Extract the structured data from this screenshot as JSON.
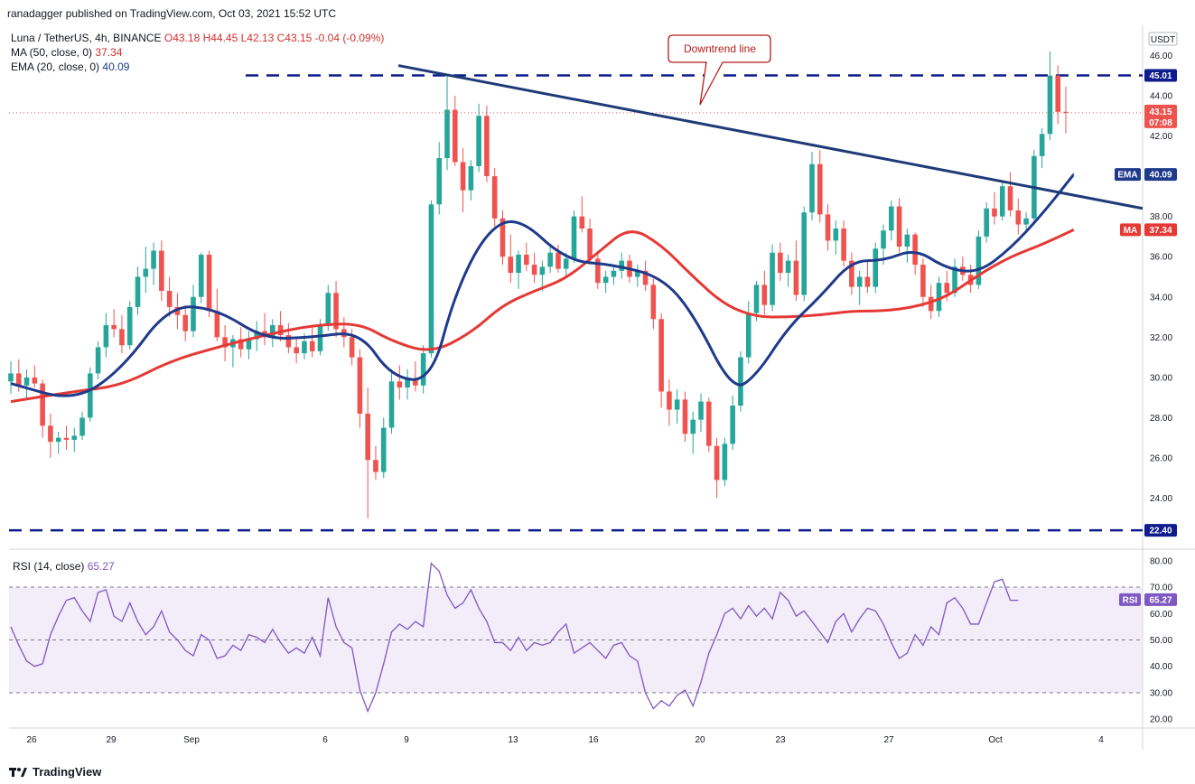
{
  "header": {
    "publisher": "ranadagger published on TradingView.com, Oct 03, 2021 15:52 UTC"
  },
  "legend": {
    "symbol": "Luna / TetherUS, 4h, BINANCE",
    "ohlc": "O43.18 H44.45 L42.13 C43.15 -0.04 (-0.09%)",
    "ma_label": "MA (50, close, 0)",
    "ma_value": "37.34",
    "ema_label": "EMA (20, close, 0)",
    "ema_value": "40.09",
    "rsi_label": "RSI (14, close)",
    "rsi_value": "65.27"
  },
  "annotation": {
    "downtrend": "Downtrend line"
  },
  "price_axis": {
    "currency": "USDT",
    "ticks": [
      "46.00",
      "44.00",
      "42.00",
      "38.00",
      "36.00",
      "34.00",
      "32.00",
      "30.00",
      "28.00",
      "26.00",
      "24.00"
    ],
    "tags": {
      "resistance": "45.01",
      "last": "43.15",
      "countdown": "07:08",
      "ema_tag": "EMA",
      "ema": "40.09",
      "ma_tag": "MA",
      "ma": "37.34",
      "support": "22.40"
    }
  },
  "rsi_axis": {
    "ticks": [
      "80.00",
      "70.00",
      "60.00",
      "50.00",
      "40.00",
      "30.00",
      "20.00"
    ],
    "tag": "RSI",
    "tag_value": "65.27"
  },
  "time_axis": {
    "labels": [
      "26",
      "29",
      "Sep",
      "6",
      "9",
      "13",
      "16",
      "20",
      "23",
      "27",
      "Oct",
      "4"
    ]
  },
  "footer": {
    "brand": "TradingView"
  },
  "colors": {
    "ema": "#1e3a8a",
    "ma": "#e53935",
    "up": "#26a69a",
    "down": "#ef5350",
    "trend": "#1e3a78",
    "rsi": "#7e57c2",
    "rsi_band": "#ede7f6"
  },
  "chart_data": {
    "type": "candlestick",
    "title": "Luna / TetherUS, 4h, BINANCE",
    "price_ylim": [
      22.4,
      46.0
    ],
    "horizontal_levels": [
      45.01,
      22.4
    ],
    "last_price": 43.15,
    "candles_ohlc": [
      [
        29.8,
        30.8,
        29.2,
        30.2
      ],
      [
        30.2,
        30.9,
        29.3,
        29.6
      ],
      [
        29.6,
        30.4,
        28.9,
        30.0
      ],
      [
        30.0,
        30.6,
        29.5,
        29.7
      ],
      [
        29.7,
        29.9,
        27.0,
        27.6
      ],
      [
        27.6,
        28.2,
        26.0,
        26.8
      ],
      [
        26.8,
        27.3,
        26.2,
        27.0
      ],
      [
        27.0,
        27.6,
        26.4,
        26.9
      ],
      [
        26.9,
        27.5,
        26.3,
        27.1
      ],
      [
        27.1,
        28.3,
        26.9,
        28.0
      ],
      [
        28.0,
        30.5,
        27.8,
        30.2
      ],
      [
        30.2,
        31.8,
        29.9,
        31.5
      ],
      [
        31.5,
        33.2,
        31.0,
        32.6
      ],
      [
        32.6,
        33.4,
        32.0,
        32.4
      ],
      [
        32.4,
        33.1,
        31.2,
        31.6
      ],
      [
        31.6,
        33.8,
        31.4,
        33.5
      ],
      [
        33.5,
        35.5,
        33.1,
        35.0
      ],
      [
        35.0,
        36.5,
        34.2,
        35.4
      ],
      [
        35.4,
        36.7,
        34.6,
        36.3
      ],
      [
        36.3,
        36.8,
        33.8,
        34.3
      ],
      [
        34.3,
        35.0,
        33.0,
        33.5
      ],
      [
        33.5,
        34.2,
        32.4,
        33.1
      ],
      [
        33.1,
        33.6,
        31.8,
        32.3
      ],
      [
        32.3,
        34.6,
        32.0,
        34.0
      ],
      [
        34.0,
        36.2,
        33.7,
        36.1
      ],
      [
        36.1,
        36.3,
        33.0,
        33.3
      ],
      [
        33.3,
        34.4,
        31.8,
        32.0
      ],
      [
        32.0,
        32.6,
        30.8,
        31.5
      ],
      [
        31.5,
        32.1,
        30.5,
        31.9
      ],
      [
        31.9,
        32.5,
        31.0,
        31.4
      ],
      [
        31.4,
        32.3,
        30.9,
        31.9
      ],
      [
        31.9,
        32.8,
        31.3,
        32.3
      ],
      [
        32.3,
        33.2,
        31.6,
        32.0
      ],
      [
        32.0,
        32.9,
        31.5,
        32.6
      ],
      [
        32.6,
        33.3,
        31.8,
        32.1
      ],
      [
        32.1,
        32.7,
        31.2,
        31.5
      ],
      [
        31.5,
        32.0,
        30.7,
        31.2
      ],
      [
        31.2,
        32.2,
        30.9,
        31.8
      ],
      [
        31.8,
        32.5,
        31.0,
        31.3
      ],
      [
        31.3,
        32.9,
        31.1,
        32.6
      ],
      [
        32.6,
        34.6,
        32.3,
        34.2
      ],
      [
        34.2,
        34.8,
        32.0,
        32.4
      ],
      [
        32.4,
        33.0,
        31.5,
        32.0
      ],
      [
        32.0,
        32.4,
        30.6,
        31.0
      ],
      [
        31.0,
        31.4,
        27.5,
        28.2
      ],
      [
        28.2,
        29.5,
        23.0,
        25.9
      ],
      [
        25.9,
        26.6,
        24.9,
        25.3
      ],
      [
        25.3,
        28.0,
        25.0,
        27.5
      ],
      [
        27.5,
        30.4,
        27.2,
        29.8
      ],
      [
        29.8,
        30.6,
        28.9,
        29.5
      ],
      [
        29.5,
        30.4,
        28.9,
        29.9
      ],
      [
        29.9,
        30.8,
        29.3,
        29.6
      ],
      [
        29.6,
        31.6,
        29.2,
        31.2
      ],
      [
        31.2,
        38.8,
        31.0,
        38.6
      ],
      [
        38.6,
        41.7,
        38.1,
        40.9
      ],
      [
        40.9,
        45.0,
        40.3,
        43.3
      ],
      [
        43.3,
        44.0,
        40.5,
        40.7
      ],
      [
        40.7,
        41.4,
        38.2,
        39.3
      ],
      [
        39.3,
        40.8,
        38.8,
        40.5
      ],
      [
        40.5,
        43.6,
        40.2,
        43.0
      ],
      [
        43.0,
        43.5,
        39.7,
        40.0
      ],
      [
        40.0,
        40.4,
        37.5,
        37.9
      ],
      [
        37.9,
        38.3,
        35.6,
        36.0
      ],
      [
        36.0,
        37.1,
        34.7,
        35.2
      ],
      [
        35.2,
        36.3,
        34.4,
        36.1
      ],
      [
        36.1,
        36.7,
        35.3,
        35.6
      ],
      [
        35.6,
        36.2,
        34.7,
        35.1
      ],
      [
        35.1,
        35.8,
        34.3,
        35.5
      ],
      [
        35.5,
        36.5,
        35.2,
        36.2
      ],
      [
        36.2,
        36.6,
        35.2,
        35.4
      ],
      [
        35.4,
        36.2,
        35.0,
        35.9
      ],
      [
        35.9,
        38.3,
        35.7,
        38.0
      ],
      [
        38.0,
        39.0,
        37.2,
        37.4
      ],
      [
        37.4,
        37.9,
        35.6,
        35.9
      ],
      [
        35.9,
        36.3,
        34.4,
        34.7
      ],
      [
        34.7,
        35.3,
        34.2,
        35.0
      ],
      [
        35.0,
        35.6,
        34.6,
        35.3
      ],
      [
        35.3,
        36.2,
        34.9,
        35.8
      ],
      [
        35.8,
        36.1,
        34.7,
        35.0
      ],
      [
        35.0,
        35.6,
        34.5,
        35.3
      ],
      [
        35.3,
        35.8,
        34.3,
        34.6
      ],
      [
        34.6,
        34.9,
        32.4,
        32.9
      ],
      [
        32.9,
        33.2,
        28.5,
        29.3
      ],
      [
        29.3,
        29.9,
        27.6,
        28.4
      ],
      [
        28.4,
        29.4,
        27.7,
        28.9
      ],
      [
        28.9,
        29.3,
        26.8,
        27.2
      ],
      [
        27.2,
        28.3,
        26.2,
        27.9
      ],
      [
        27.9,
        29.2,
        27.3,
        28.8
      ],
      [
        28.8,
        29.0,
        26.3,
        26.6
      ],
      [
        26.6,
        27.0,
        24.0,
        24.9
      ],
      [
        24.9,
        27.0,
        24.6,
        26.7
      ],
      [
        26.7,
        29.1,
        26.4,
        28.6
      ],
      [
        28.6,
        31.3,
        28.3,
        31.0
      ],
      [
        31.0,
        33.8,
        30.7,
        33.2
      ],
      [
        33.2,
        34.8,
        32.8,
        34.6
      ],
      [
        34.6,
        35.3,
        33.1,
        33.6
      ],
      [
        33.6,
        36.6,
        33.3,
        36.2
      ],
      [
        36.2,
        36.7,
        34.8,
        35.2
      ],
      [
        35.2,
        36.1,
        34.5,
        35.8
      ],
      [
        35.8,
        36.8,
        33.8,
        34.1
      ],
      [
        34.1,
        38.5,
        33.8,
        38.2
      ],
      [
        38.2,
        41.2,
        37.8,
        40.6
      ],
      [
        40.6,
        41.3,
        37.7,
        38.1
      ],
      [
        38.1,
        38.6,
        36.3,
        36.8
      ],
      [
        36.8,
        37.8,
        36.1,
        37.4
      ],
      [
        37.4,
        37.8,
        35.5,
        35.8
      ],
      [
        35.8,
        36.2,
        34.1,
        34.5
      ],
      [
        34.5,
        35.3,
        33.6,
        35.0
      ],
      [
        35.0,
        35.8,
        34.2,
        34.5
      ],
      [
        34.5,
        36.7,
        34.2,
        36.4
      ],
      [
        36.4,
        37.6,
        35.6,
        37.3
      ],
      [
        37.3,
        38.8,
        36.8,
        38.5
      ],
      [
        38.5,
        38.9,
        36.2,
        36.5
      ],
      [
        36.5,
        37.4,
        35.7,
        37.1
      ],
      [
        37.1,
        37.2,
        35.1,
        35.6
      ],
      [
        35.6,
        35.9,
        33.5,
        34.0
      ],
      [
        34.0,
        34.6,
        32.9,
        33.3
      ],
      [
        33.3,
        35.0,
        33.0,
        34.7
      ],
      [
        34.7,
        35.3,
        33.8,
        34.2
      ],
      [
        34.2,
        35.9,
        34.0,
        35.5
      ],
      [
        35.5,
        36.0,
        34.8,
        35.1
      ],
      [
        35.1,
        35.6,
        34.2,
        34.6
      ],
      [
        34.6,
        37.3,
        34.4,
        37.0
      ],
      [
        37.0,
        38.7,
        36.7,
        38.4
      ],
      [
        38.4,
        39.2,
        37.6,
        38.0
      ],
      [
        38.0,
        39.8,
        37.8,
        39.5
      ],
      [
        39.5,
        40.2,
        38.0,
        38.3
      ],
      [
        38.3,
        38.9,
        37.1,
        37.6
      ],
      [
        37.6,
        38.2,
        37.2,
        37.9
      ],
      [
        37.9,
        41.3,
        37.6,
        41.0
      ],
      [
        41.0,
        42.4,
        40.4,
        42.1
      ],
      [
        42.1,
        46.2,
        41.8,
        45.0
      ],
      [
        45.0,
        45.5,
        42.6,
        43.2
      ],
      [
        43.2,
        44.45,
        42.13,
        43.15
      ]
    ],
    "ema20_points": [
      [
        0,
        29.7
      ],
      [
        8,
        28.8
      ],
      [
        14,
        30.4
      ],
      [
        20,
        33.6
      ],
      [
        26,
        33.4
      ],
      [
        32,
        31.9
      ],
      [
        38,
        32.0
      ],
      [
        44,
        32.3
      ],
      [
        48,
        30.0
      ],
      [
        53,
        29.8
      ],
      [
        56,
        34.2
      ],
      [
        60,
        37.3
      ],
      [
        64,
        38.0
      ],
      [
        70,
        35.8
      ],
      [
        76,
        35.6
      ],
      [
        82,
        35.0
      ],
      [
        86,
        33.2
      ],
      [
        91,
        29.3
      ],
      [
        94,
        30.1
      ],
      [
        98,
        32.5
      ],
      [
        102,
        34.0
      ],
      [
        106,
        35.8
      ],
      [
        110,
        35.8
      ],
      [
        114,
        36.4
      ],
      [
        118,
        35.4
      ],
      [
        122,
        35.2
      ],
      [
        126,
        36.4
      ],
      [
        130,
        38.1
      ],
      [
        134,
        40.09
      ]
    ],
    "ma50_points": [
      [
        0,
        28.8
      ],
      [
        8,
        29.3
      ],
      [
        14,
        29.6
      ],
      [
        20,
        30.8
      ],
      [
        26,
        31.5
      ],
      [
        32,
        32.1
      ],
      [
        38,
        32.6
      ],
      [
        44,
        32.7
      ],
      [
        48,
        31.8
      ],
      [
        53,
        31.2
      ],
      [
        58,
        32.2
      ],
      [
        62,
        33.6
      ],
      [
        66,
        34.3
      ],
      [
        70,
        34.9
      ],
      [
        74,
        36.2
      ],
      [
        78,
        37.5
      ],
      [
        82,
        36.6
      ],
      [
        86,
        35.0
      ],
      [
        90,
        33.6
      ],
      [
        94,
        33.0
      ],
      [
        98,
        33.0
      ],
      [
        102,
        33.1
      ],
      [
        106,
        33.3
      ],
      [
        110,
        33.3
      ],
      [
        114,
        33.5
      ],
      [
        118,
        34.0
      ],
      [
        122,
        35.1
      ],
      [
        126,
        36.0
      ],
      [
        130,
        36.6
      ],
      [
        134,
        37.34
      ]
    ],
    "trendline": {
      "from_bar": 50,
      "from_price": 45.5,
      "to_bar": 139,
      "to_price": 38.4
    },
    "rsi_values": [
      55,
      48,
      42,
      40,
      41,
      52,
      59,
      65,
      66,
      61,
      57,
      68,
      69,
      59,
      57,
      64,
      57,
      52,
      55,
      61,
      53,
      50,
      46,
      44,
      52,
      50,
      43,
      44,
      48,
      46,
      52,
      51,
      49,
      54,
      49,
      45,
      47,
      45,
      51,
      44,
      66,
      55,
      49,
      47,
      31,
      23,
      30,
      41,
      53,
      56,
      54,
      57,
      55,
      79,
      76,
      67,
      62,
      64,
      69,
      62,
      57,
      49,
      49,
      46,
      51,
      46,
      49,
      48,
      49,
      53,
      56,
      45,
      47,
      49,
      46,
      43,
      48,
      49,
      44,
      42,
      30,
      24,
      27,
      25,
      29,
      31,
      25,
      34,
      45,
      52,
      60,
      62,
      58,
      63,
      59,
      62,
      58,
      68,
      65,
      59,
      61,
      57,
      53,
      49,
      57,
      60,
      53,
      58,
      62,
      61,
      56,
      49,
      43,
      45,
      52,
      48,
      55,
      52,
      64,
      66,
      62,
      56,
      56,
      64,
      72,
      73,
      65,
      65
    ],
    "rsi_ylim": [
      20,
      80
    ],
    "rsi_band": [
      30,
      70
    ]
  }
}
